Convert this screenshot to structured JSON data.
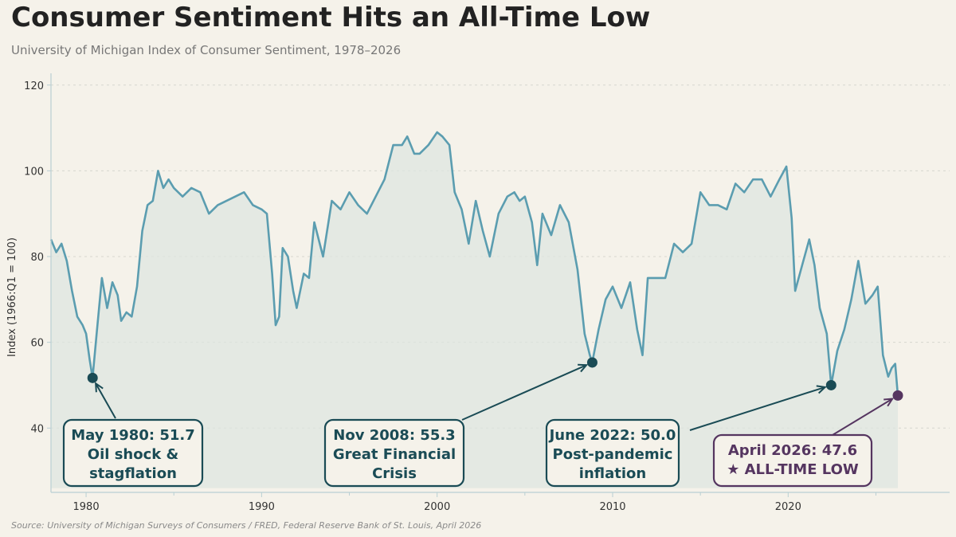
{
  "title": "Consumer Sentiment Hits an All-Time Low",
  "subtitle": "University of Michigan Index of Consumer Sentiment, 1978–2026",
  "source": "Source: University of Michigan Surveys of Consumers / FRED, Federal Reserve Bank of St. Louis, April 2026",
  "colors": {
    "line": "#5b9db0",
    "fill": "#dde6e0",
    "annotation": "#1a4b55",
    "highlight": "#553560",
    "axis": "#b9cfd3"
  },
  "chart_data": {
    "type": "area",
    "title": "Consumer Sentiment Hits an All-Time Low",
    "subtitle": "University of Michigan Index of Consumer Sentiment, 1978–2026",
    "xlabel": "",
    "ylabel": "Index (1966:Q1 = 100)",
    "xlim": [
      1978,
      2029.2
    ],
    "ylim": [
      25,
      122
    ],
    "x_ticks": [
      1980,
      1990,
      2000,
      2010,
      2020
    ],
    "y_ticks": [
      40,
      60,
      80,
      100,
      120
    ],
    "grid": "horizontal-dashed",
    "series": [
      {
        "points": [
          [
            1978.0,
            84
          ],
          [
            1978.3,
            81
          ],
          [
            1978.6,
            83
          ],
          [
            1978.9,
            79
          ],
          [
            1979.2,
            72
          ],
          [
            1979.5,
            66
          ],
          [
            1979.8,
            64
          ],
          [
            1980.0,
            62
          ],
          [
            1980.2,
            56
          ],
          [
            1980.37,
            51.7
          ],
          [
            1980.6,
            62
          ],
          [
            1980.9,
            75
          ],
          [
            1981.2,
            68
          ],
          [
            1981.5,
            74
          ],
          [
            1981.8,
            71
          ],
          [
            1982.0,
            65
          ],
          [
            1982.3,
            67
          ],
          [
            1982.6,
            66
          ],
          [
            1982.9,
            73
          ],
          [
            1983.2,
            86
          ],
          [
            1983.5,
            92
          ],
          [
            1983.8,
            93
          ],
          [
            1984.1,
            100
          ],
          [
            1984.4,
            96
          ],
          [
            1984.7,
            98
          ],
          [
            1985.0,
            96
          ],
          [
            1985.5,
            94
          ],
          [
            1986.0,
            96
          ],
          [
            1986.5,
            95
          ],
          [
            1987.0,
            90
          ],
          [
            1987.5,
            92
          ],
          [
            1988.0,
            93
          ],
          [
            1988.5,
            94
          ],
          [
            1989.0,
            95
          ],
          [
            1989.5,
            92
          ],
          [
            1990.0,
            91
          ],
          [
            1990.3,
            90
          ],
          [
            1990.6,
            76
          ],
          [
            1990.8,
            64
          ],
          [
            1991.0,
            66
          ],
          [
            1991.2,
            82
          ],
          [
            1991.5,
            80
          ],
          [
            1991.8,
            72
          ],
          [
            1992.0,
            68
          ],
          [
            1992.4,
            76
          ],
          [
            1992.7,
            75
          ],
          [
            1993.0,
            88
          ],
          [
            1993.5,
            80
          ],
          [
            1994.0,
            93
          ],
          [
            1994.5,
            91
          ],
          [
            1995.0,
            95
          ],
          [
            1995.5,
            92
          ],
          [
            1996.0,
            90
          ],
          [
            1996.5,
            94
          ],
          [
            1997.0,
            98
          ],
          [
            1997.5,
            106
          ],
          [
            1998.0,
            106
          ],
          [
            1998.3,
            108
          ],
          [
            1998.7,
            104
          ],
          [
            1999.0,
            104
          ],
          [
            1999.5,
            106
          ],
          [
            2000.0,
            109
          ],
          [
            2000.3,
            108
          ],
          [
            2000.7,
            106
          ],
          [
            2001.0,
            95
          ],
          [
            2001.4,
            91
          ],
          [
            2001.8,
            83
          ],
          [
            2002.2,
            93
          ],
          [
            2002.6,
            86
          ],
          [
            2003.0,
            80
          ],
          [
            2003.5,
            90
          ],
          [
            2004.0,
            94
          ],
          [
            2004.4,
            95
          ],
          [
            2004.7,
            93
          ],
          [
            2005.0,
            94
          ],
          [
            2005.4,
            88
          ],
          [
            2005.7,
            78
          ],
          [
            2006.0,
            90
          ],
          [
            2006.5,
            85
          ],
          [
            2007.0,
            92
          ],
          [
            2007.5,
            88
          ],
          [
            2008.0,
            77
          ],
          [
            2008.4,
            62
          ],
          [
            2008.7,
            57
          ],
          [
            2008.84,
            55.3
          ],
          [
            2009.2,
            63
          ],
          [
            2009.6,
            70
          ],
          [
            2010.0,
            73
          ],
          [
            2010.5,
            68
          ],
          [
            2011.0,
            74
          ],
          [
            2011.4,
            63
          ],
          [
            2011.7,
            57
          ],
          [
            2012.0,
            75
          ],
          [
            2012.5,
            75
          ],
          [
            2013.0,
            75
          ],
          [
            2013.5,
            83
          ],
          [
            2014.0,
            81
          ],
          [
            2014.5,
            83
          ],
          [
            2015.0,
            95
          ],
          [
            2015.5,
            92
          ],
          [
            2016.0,
            92
          ],
          [
            2016.5,
            91
          ],
          [
            2017.0,
            97
          ],
          [
            2017.5,
            95
          ],
          [
            2018.0,
            98
          ],
          [
            2018.5,
            98
          ],
          [
            2019.0,
            94
          ],
          [
            2019.5,
            98
          ],
          [
            2019.9,
            101
          ],
          [
            2020.2,
            89
          ],
          [
            2020.4,
            72
          ],
          [
            2020.8,
            78
          ],
          [
            2021.2,
            84
          ],
          [
            2021.5,
            78
          ],
          [
            2021.8,
            68
          ],
          [
            2022.2,
            62
          ],
          [
            2022.45,
            50.0
          ],
          [
            2022.8,
            58
          ],
          [
            2023.2,
            63
          ],
          [
            2023.6,
            70
          ],
          [
            2024.0,
            79
          ],
          [
            2024.4,
            69
          ],
          [
            2024.8,
            71
          ],
          [
            2025.1,
            73
          ],
          [
            2025.4,
            57
          ],
          [
            2025.7,
            52
          ],
          [
            2025.9,
            54
          ],
          [
            2026.1,
            55
          ],
          [
            2026.25,
            47.6
          ]
        ]
      }
    ],
    "annotations": [
      {
        "x": 1980.37,
        "y": 51.7,
        "lines": [
          "May 1980: 51.7",
          "Oil shock &",
          "stagflation"
        ],
        "style": "normal"
      },
      {
        "x": 2008.84,
        "y": 55.3,
        "lines": [
          "Nov 2008: 55.3",
          "Great Financial",
          "Crisis"
        ],
        "style": "normal"
      },
      {
        "x": 2022.45,
        "y": 50.0,
        "lines": [
          "June 2022: 50.0",
          "Post-pandemic",
          "inflation"
        ],
        "style": "normal"
      },
      {
        "x": 2026.25,
        "y": 47.6,
        "lines": [
          "April 2026: 47.6",
          "★ ALL-TIME LOW"
        ],
        "style": "highlight"
      }
    ]
  }
}
